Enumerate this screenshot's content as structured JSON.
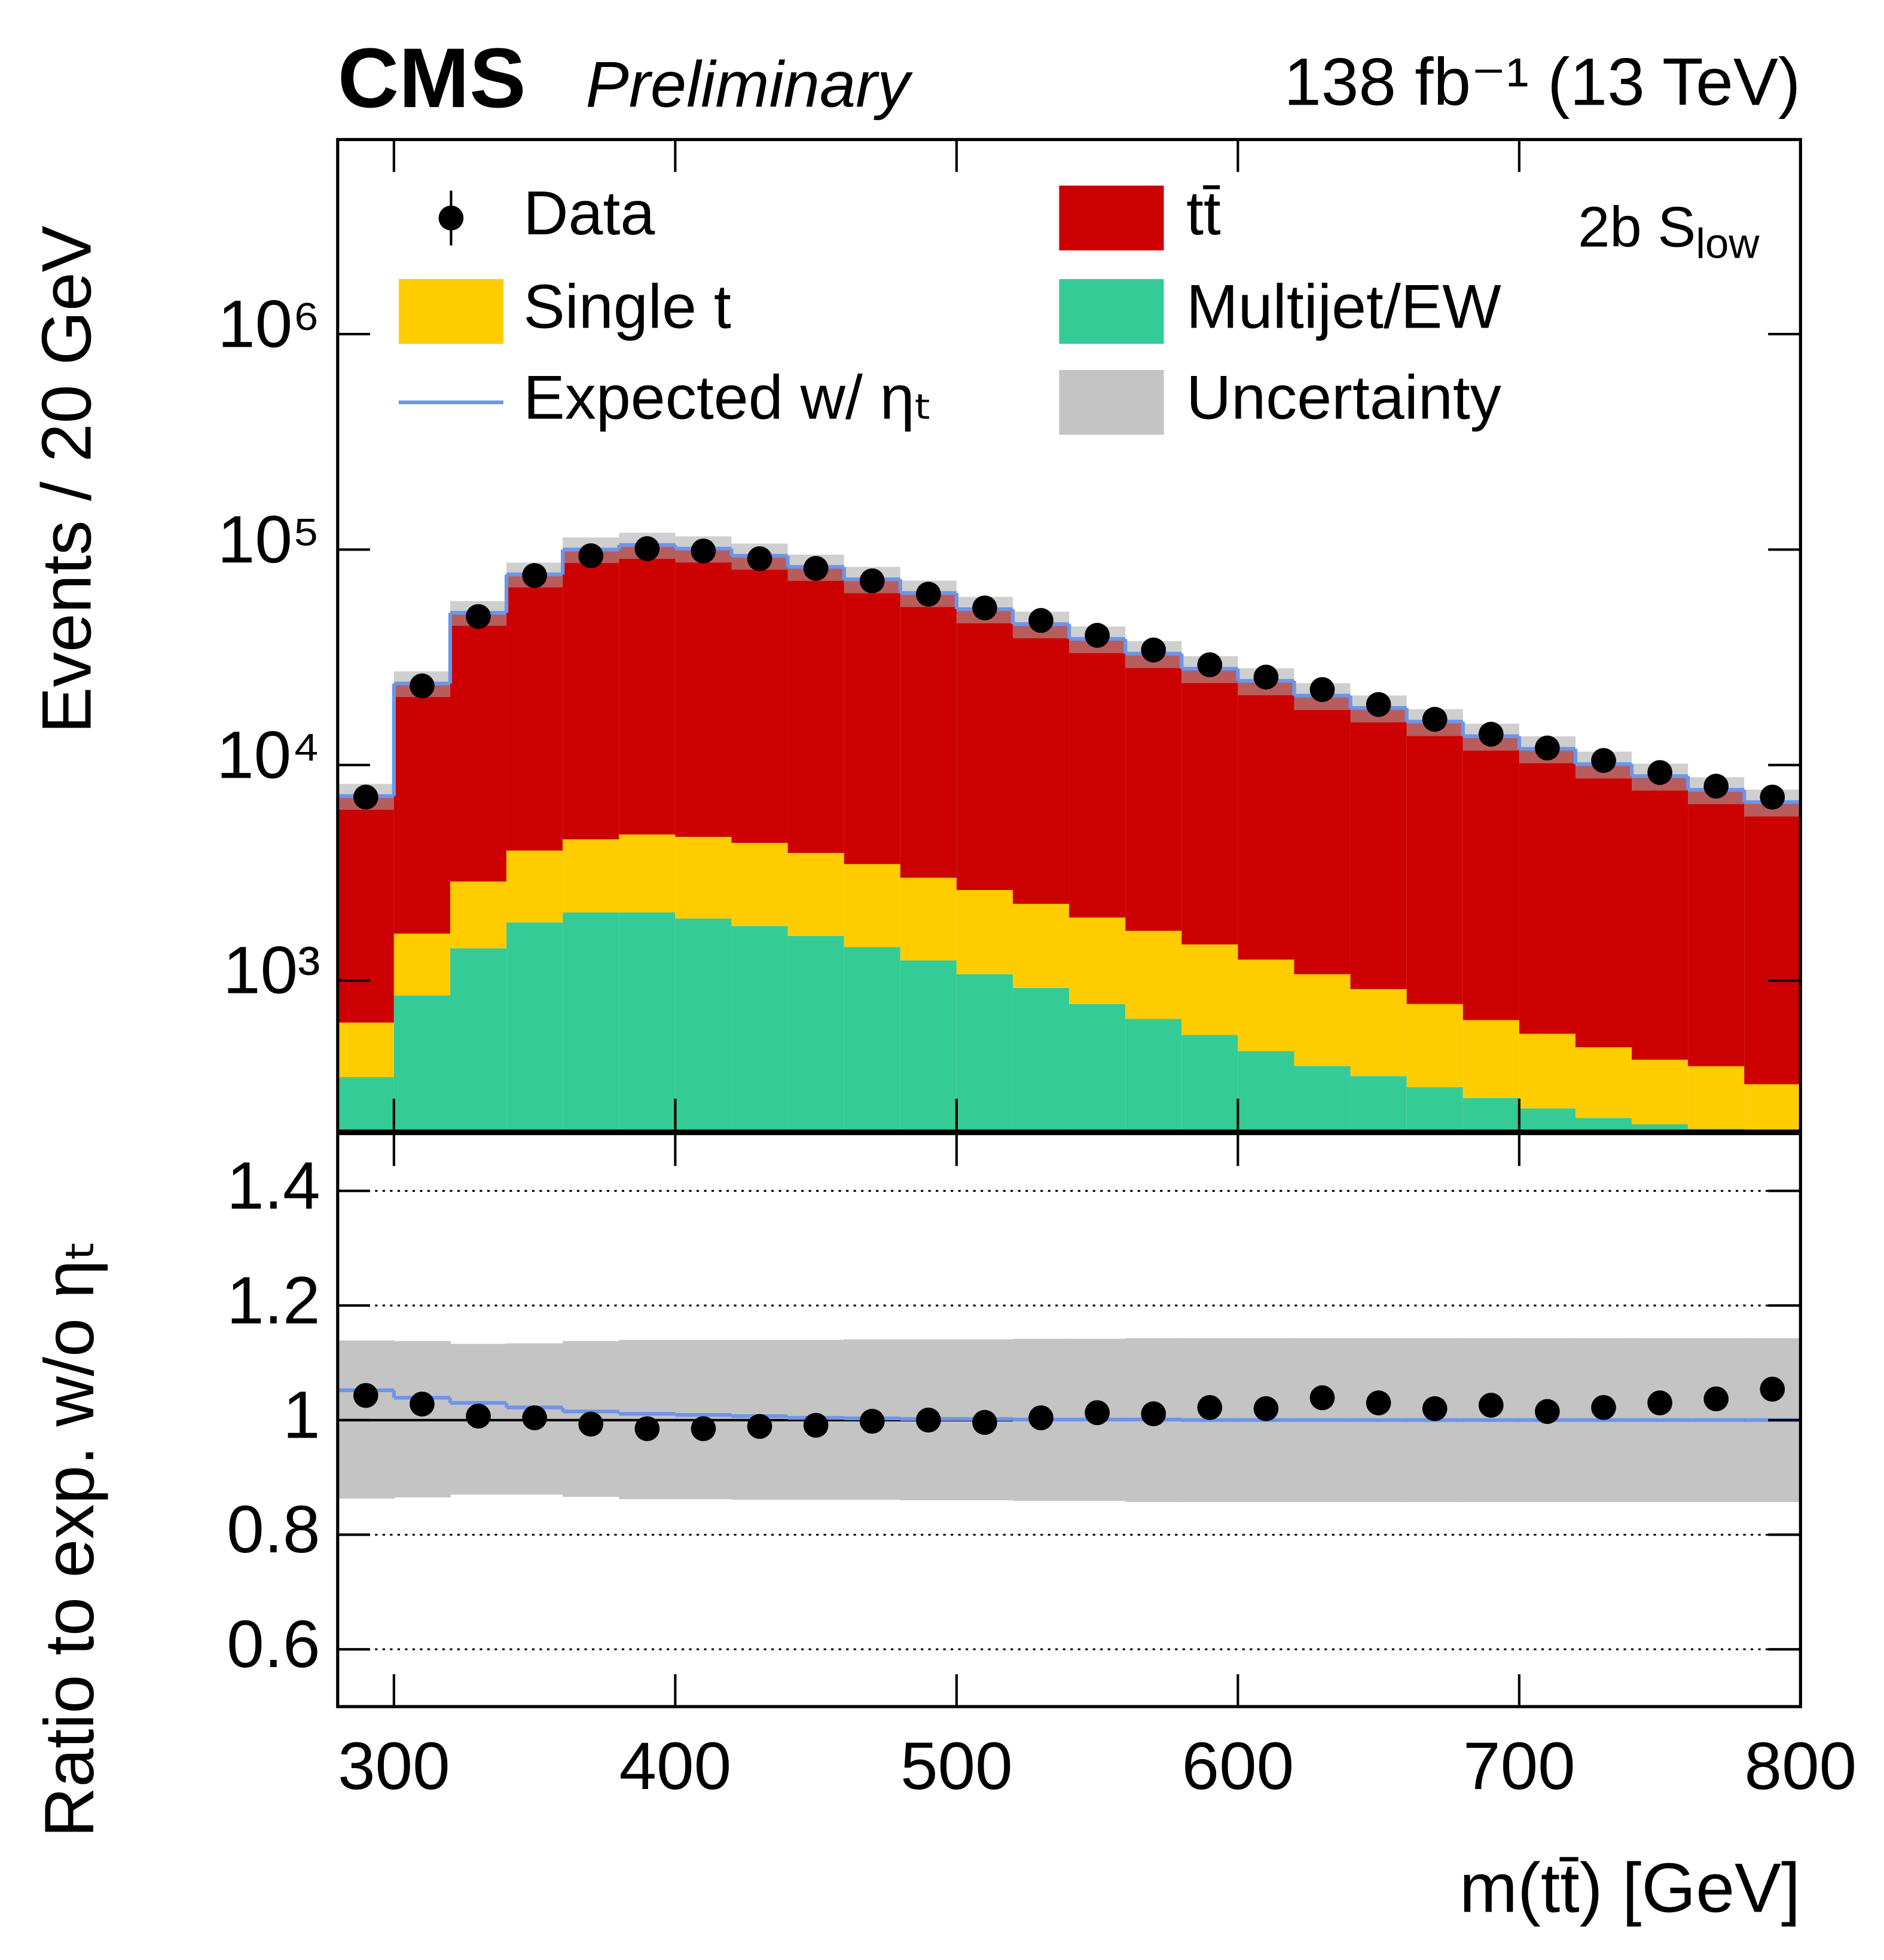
{
  "chart_data": [
    {
      "type": "stacked_histogram",
      "title": "CMS",
      "subtitle": "Preliminary",
      "lumi_label": "138 fb⁻¹ (13 TeV)",
      "region_label": {
        "text": "2b S",
        "subscript": "low"
      },
      "ylabel": "Events / 20 GeV",
      "log_y": true,
      "bins": [
        280,
        300,
        320,
        340,
        360,
        380,
        400,
        420,
        440,
        460,
        480,
        500,
        520,
        540,
        560,
        580,
        600,
        620,
        640,
        660,
        680,
        700,
        720,
        740,
        760,
        780,
        800
      ],
      "xlim": [
        280,
        800
      ],
      "xticks": [
        300,
        400,
        500,
        600,
        700,
        800
      ],
      "ylim": [
        200,
        8000000
      ],
      "yticks": [
        {
          "value": 1000,
          "label": "10³"
        },
        {
          "value": 10000,
          "label": "10⁴"
        },
        {
          "value": 100000,
          "label": "10⁵"
        },
        {
          "value": 1000000,
          "label": "10⁶"
        }
      ],
      "series": [
        {
          "name": "Multijet/EW",
          "color": "#35cb96",
          "values": [
            356,
            853,
            1410,
            1860,
            2070,
            2070,
            1940,
            1790,
            1610,
            1430,
            1240,
            1070,
            924,
            778,
            664,
            559,
            470,
            401,
            360,
            320,
            285,
            255,
            230,
            215,
            205,
            190
          ]
        },
        {
          "name": "Single t",
          "color": "#ffcc00",
          "values": [
            282,
            797,
            1470,
            2150,
            2450,
            2690,
            2700,
            2560,
            2300,
            2040,
            1760,
            1560,
            1346,
            1182,
            1036,
            911,
            780,
            669,
            552,
            458,
            370,
            311,
            260,
            214,
            195,
            140
          ]
        },
        {
          "name": "tt̄",
          "color": "#cc0000",
          "values": [
            6540,
            22250,
            48020,
            72690,
            95480,
            100240,
            96360,
            89250,
            79190,
            69330,
            59900,
            50270,
            42830,
            36540,
            31200,
            26530,
            23350,
            19930,
            17490,
            15120,
            12950,
            11330,
            9610,
            8450,
            7280,
            6400
          ]
        }
      ],
      "expected": {
        "name": "Expected w/ ηₜ",
        "color": "#6d95e8"
      },
      "uncertainty": {
        "name": "Uncertainty",
        "color": "#a8a8a8"
      },
      "data": {
        "name": "Data",
        "color": "#000000",
        "values": [
          7100,
          23300,
          48900,
          75800,
          93600,
          101000,
          98500,
          90700,
          81800,
          71600,
          62100,
          53600,
          46900,
          40000,
          34200,
          29200,
          25600,
          22400,
          19100,
          16300,
          13900,
          12000,
          10500,
          9230,
          7980,
          7100
        ]
      }
    },
    {
      "type": "ratio",
      "ylabel": "Ratio to exp. w/o ηₜ",
      "xlabel": "m(tt̄) [GeV]",
      "bins": [
        280,
        300,
        320,
        340,
        360,
        380,
        400,
        420,
        440,
        460,
        480,
        500,
        520,
        540,
        560,
        580,
        600,
        620,
        640,
        660,
        680,
        700,
        720,
        740,
        760,
        780,
        800
      ],
      "xlim": [
        280,
        800
      ],
      "xticks": [
        300,
        400,
        500,
        600,
        700,
        800
      ],
      "ylim": [
        0.5,
        1.5
      ],
      "yticks": [
        0.6,
        0.8,
        1,
        1.2,
        1.4
      ],
      "grid": true,
      "reference_line": 1,
      "ratio_data": [
        1.043,
        1.028,
        1.007,
        1.004,
        0.993,
        0.985,
        0.985,
        0.989,
        0.991,
        0.998,
        1.0,
        0.996,
        1.004,
        1.013,
        1.011,
        1.022,
        1.02,
        1.039,
        1.03,
        1.02,
        1.026,
        1.015,
        1.022,
        1.03,
        1.037,
        1.054
      ],
      "expected_ratio": [
        1.052,
        1.039,
        1.03,
        1.022,
        1.015,
        1.011,
        1.009,
        1.007,
        1.004,
        1.003,
        1.002,
        1.002,
        1.001,
        1.001,
        1.001,
        1.0,
        1.0,
        1.0,
        1.0,
        1.0,
        1.0,
        1.0,
        1.0,
        1.0,
        1.0,
        1.0
      ],
      "uncertainty_upper": [
        1.139,
        1.138,
        1.133,
        1.134,
        1.138,
        1.14,
        1.14,
        1.14,
        1.14,
        1.141,
        1.141,
        1.141,
        1.142,
        1.142,
        1.143,
        1.143,
        1.143,
        1.143,
        1.143,
        1.143,
        1.143,
        1.143,
        1.143,
        1.143,
        1.143,
        1.143
      ],
      "uncertainty_lower": [
        0.863,
        0.865,
        0.87,
        0.87,
        0.866,
        0.862,
        0.862,
        0.861,
        0.861,
        0.861,
        0.86,
        0.86,
        0.859,
        0.859,
        0.857,
        0.857,
        0.857,
        0.857,
        0.857,
        0.857,
        0.857,
        0.857,
        0.857,
        0.857,
        0.857,
        0.857
      ]
    }
  ]
}
